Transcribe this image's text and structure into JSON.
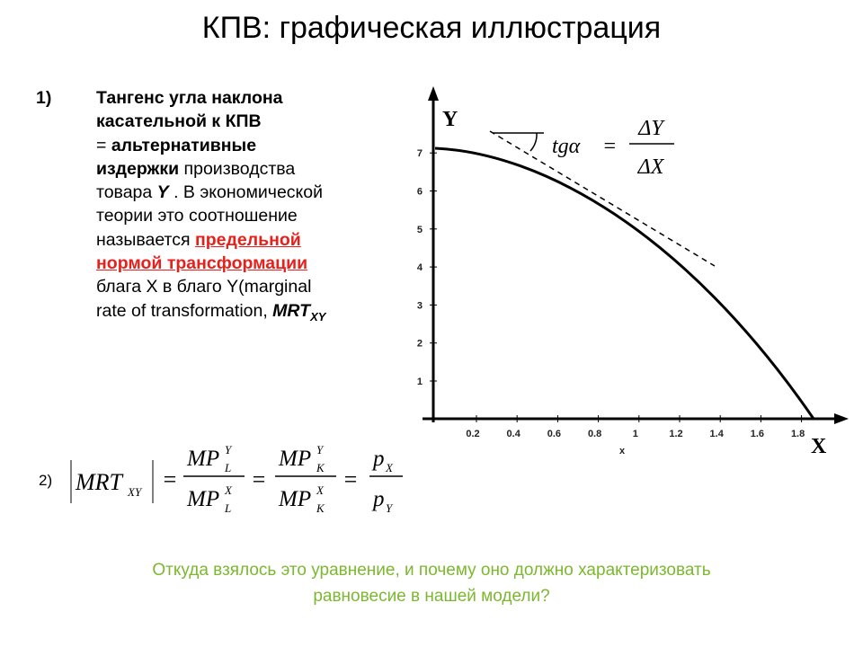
{
  "header": {
    "title": "КПВ: графическая иллюстрация"
  },
  "point1": {
    "marker": "1)",
    "lines": [
      [
        "Тангенс угла наклона"
      ],
      [
        "касательной к КПВ"
      ],
      [
        "= ",
        "альтернативные"
      ],
      [
        "издержки",
        " производства"
      ],
      [
        "товара ",
        "Y",
        " . В экономической"
      ],
      [
        " теории это соотношение"
      ],
      [
        "называется ",
        "предельной"
      ],
      [
        "нормой трансформации"
      ],
      [
        "блага X в благо Y(marginal"
      ],
      [
        "rate of transformation, ",
        "MRT",
        "XY"
      ]
    ]
  },
  "figure": {
    "y_axis": "Y",
    "x_axis": "X",
    "x_note": "x",
    "yticks": [
      "1",
      "2",
      "3",
      "4",
      "5",
      "6",
      "7"
    ],
    "xticks": [
      "0.2",
      "0.4",
      "0.6",
      "0.8",
      "1",
      "1.2",
      "1.4",
      "1.6",
      "1.8"
    ],
    "slope": {
      "lhs": "tgα",
      "eq": "=",
      "num": "ΔY",
      "den": "ΔX"
    }
  },
  "point2": {
    "marker": "2)",
    "eq": "=",
    "lhs": {
      "base": "MRT",
      "sub": "XY"
    },
    "fractions": [
      {
        "num": {
          "base": "MP",
          "sup": "Y",
          "sub": "L"
        },
        "den": {
          "base": "MP",
          "sup": "X",
          "sub": "L"
        }
      },
      {
        "num": {
          "base": "MP",
          "sup": "Y",
          "sub": "K"
        },
        "den": {
          "base": "MP",
          "sup": "X",
          "sub": "K"
        }
      },
      {
        "num": {
          "base": "p",
          "sub": "X"
        },
        "den": {
          "base": "p",
          "sub": "Y"
        }
      }
    ]
  },
  "question": [
    "Откуда взялось это уравнение, и почему оно должно характеризовать",
    "равновесие в нашей модели?"
  ]
}
